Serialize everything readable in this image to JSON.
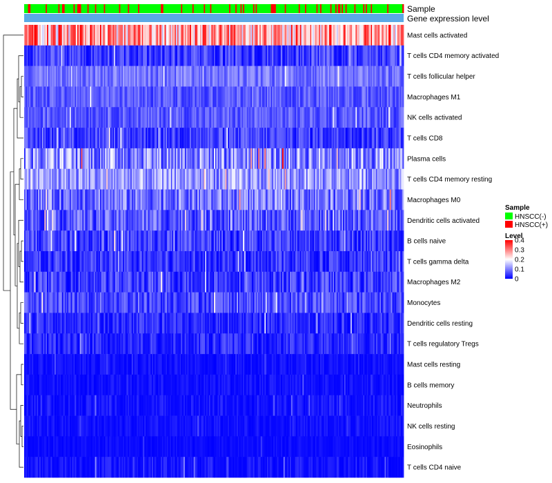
{
  "chart_data": {
    "type": "heatmap",
    "annotation_labels": {
      "sample": "Sample",
      "gene_expression_level": "Gene expression level"
    },
    "rows": [
      {
        "label": "Mast cells activated",
        "mean": 0.27,
        "spread": 0.12
      },
      {
        "label": "T cells CD4 memory activated",
        "mean": 0.05,
        "spread": 0.05
      },
      {
        "label": "T cells follicular helper",
        "mean": 0.09,
        "spread": 0.04
      },
      {
        "label": "Macrophages M1",
        "mean": 0.07,
        "spread": 0.04
      },
      {
        "label": "NK cells activated",
        "mean": 0.07,
        "spread": 0.04
      },
      {
        "label": "T cells CD8",
        "mean": 0.05,
        "spread": 0.05
      },
      {
        "label": "Plasma cells",
        "mean": 0.11,
        "spread": 0.09
      },
      {
        "label": "T cells CD4 memory resting",
        "mean": 0.12,
        "spread": 0.07
      },
      {
        "label": "Macrophages M0",
        "mean": 0.09,
        "spread": 0.07
      },
      {
        "label": "Dendritic cells activated",
        "mean": 0.07,
        "spread": 0.06
      },
      {
        "label": "B cells naive",
        "mean": 0.05,
        "spread": 0.05
      },
      {
        "label": "T cells gamma delta",
        "mean": 0.04,
        "spread": 0.05
      },
      {
        "label": "Macrophages M2",
        "mean": 0.05,
        "spread": 0.05
      },
      {
        "label": "Monocytes",
        "mean": 0.06,
        "spread": 0.05
      },
      {
        "label": "Dendritic cells resting",
        "mean": 0.03,
        "spread": 0.04
      },
      {
        "label": "T cells regulatory  Tregs",
        "mean": 0.03,
        "spread": 0.04
      },
      {
        "label": "Mast cells resting",
        "mean": 0.01,
        "spread": 0.02
      },
      {
        "label": "B cells memory",
        "mean": 0.01,
        "spread": 0.02
      },
      {
        "label": "Neutrophils",
        "mean": 0.01,
        "spread": 0.03
      },
      {
        "label": "NK cells resting",
        "mean": 0.01,
        "spread": 0.02
      },
      {
        "label": "Eosinophils",
        "mean": 0.005,
        "spread": 0.015
      },
      {
        "label": "T cells CD4 naive",
        "mean": 0.01,
        "spread": 0.03
      }
    ],
    "n_samples": 300,
    "hnscc_positive_fraction": 0.18,
    "sample_legend": {
      "title": "Sample",
      "items": [
        {
          "label": "HNSCC(-)",
          "color": "#00ff00"
        },
        {
          "label": "HNSCC(+)",
          "color": "#ff0000"
        }
      ]
    },
    "level_legend": {
      "title": "Level",
      "ticks": [
        "0.4",
        "0.3",
        "0.2",
        "0.1",
        "0"
      ],
      "range": [
        0,
        0.4
      ],
      "colors": [
        "#0000ff",
        "#ffffff",
        "#ff0000"
      ]
    },
    "annotation_colors": {
      "gene_expression_level": "#5aa9e6"
    }
  }
}
